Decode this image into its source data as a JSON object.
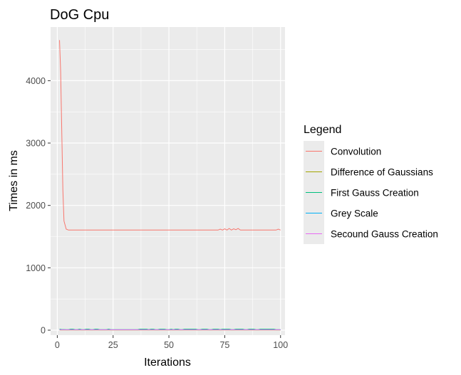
{
  "chart_data": {
    "type": "line",
    "title": "DoG Cpu",
    "xlabel": "Iterations",
    "ylabel": "Times in ms",
    "xlim": [
      -3,
      102
    ],
    "ylim": [
      -80,
      4860
    ],
    "x_ticks": [
      0,
      25,
      50,
      75,
      100
    ],
    "y_ticks": [
      0,
      1000,
      2000,
      3000,
      4000
    ],
    "grid": true,
    "legend": {
      "title": "Legend",
      "position": "right"
    },
    "series": [
      {
        "name": "Convolution",
        "color": "#F8766D",
        "x": [
          1,
          1.5,
          2,
          2.5,
          3,
          4,
          5,
          10,
          20,
          30,
          40,
          50,
          60,
          70,
          72,
          73,
          74,
          75,
          76,
          77,
          78,
          79,
          80,
          81,
          82,
          83,
          85,
          90,
          95,
          98,
          99,
          100
        ],
        "y": [
          4650,
          4150,
          3200,
          2250,
          1750,
          1620,
          1605,
          1605,
          1605,
          1605,
          1605,
          1605,
          1605,
          1605,
          1605,
          1620,
          1605,
          1625,
          1605,
          1630,
          1605,
          1625,
          1610,
          1630,
          1605,
          1605,
          1605,
          1605,
          1605,
          1605,
          1620,
          1605
        ]
      },
      {
        "name": "Difference of Gaussians",
        "color": "#A3A500",
        "x": [
          1,
          10,
          20,
          30,
          40,
          50,
          60,
          70,
          80,
          90,
          100
        ],
        "y": [
          3,
          3,
          3,
          3,
          3,
          3,
          3,
          3,
          3,
          3,
          3
        ]
      },
      {
        "name": "First Gauss Creation",
        "color": "#00BF7D",
        "x": [
          1,
          2,
          3,
          4,
          5,
          6,
          7,
          8,
          9,
          10,
          11,
          12,
          13,
          14,
          15,
          16,
          17,
          18,
          19,
          20,
          21,
          22,
          23,
          24,
          25,
          26,
          27,
          28,
          29,
          30,
          31,
          32,
          33,
          34,
          35,
          36,
          37,
          38,
          39,
          40,
          41,
          42,
          43,
          44,
          45,
          46,
          47,
          48,
          49,
          50,
          51,
          52,
          53,
          54,
          55,
          56,
          57,
          58,
          59,
          60,
          61,
          62,
          63,
          64,
          65,
          66,
          67,
          68,
          69,
          70,
          71,
          72,
          73,
          74,
          75,
          76,
          77,
          78,
          79,
          80,
          81,
          82,
          83,
          84,
          85,
          86,
          87,
          88,
          89,
          90,
          91,
          92,
          93,
          94,
          95,
          96,
          97,
          98,
          99,
          100
        ],
        "y": [
          15,
          10,
          10,
          8,
          8,
          15,
          15,
          8,
          8,
          15,
          8,
          8,
          15,
          15,
          8,
          8,
          15,
          15,
          8,
          8,
          8,
          8,
          15,
          8,
          8,
          8,
          8,
          8,
          8,
          8,
          8,
          8,
          8,
          8,
          8,
          8,
          15,
          15,
          15,
          15,
          8,
          15,
          15,
          8,
          8,
          15,
          15,
          15,
          8,
          8,
          15,
          8,
          15,
          15,
          8,
          8,
          15,
          15,
          15,
          15,
          15,
          15,
          8,
          8,
          15,
          15,
          15,
          8,
          8,
          15,
          15,
          15,
          8,
          15,
          15,
          15,
          15,
          8,
          8,
          15,
          15,
          15,
          15,
          8,
          8,
          15,
          15,
          15,
          8,
          8,
          15,
          15,
          15,
          15,
          15,
          15,
          15,
          8,
          8,
          8
        ]
      },
      {
        "name": "Grey Scale",
        "color": "#00B0F6",
        "x": [
          1,
          10,
          20,
          30,
          40,
          50,
          60,
          70,
          80,
          90,
          100
        ],
        "y": [
          5,
          5,
          5,
          5,
          5,
          5,
          5,
          5,
          5,
          5,
          5
        ]
      },
      {
        "name": "Secound Gauss Creation",
        "color": "#E76BF3",
        "x": [
          1,
          10,
          20,
          30,
          40,
          50,
          60,
          70,
          80,
          90,
          100
        ],
        "y": [
          6,
          6,
          6,
          6,
          6,
          6,
          6,
          6,
          6,
          6,
          6
        ]
      }
    ]
  }
}
